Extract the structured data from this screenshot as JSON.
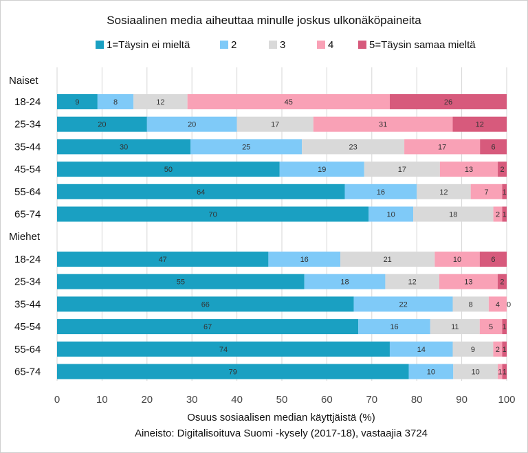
{
  "chart_data": {
    "type": "bar",
    "orientation": "horizontal",
    "stacked": true,
    "title": "Sosiaalinen media aiheuttaa minulle joskus ulkonäköpaineita",
    "xlabel": "Osuus sosiaalisen median käyttjäistä (%)",
    "source": "Aineisto: Digitalisoituva Suomi -kysely (2017-18), vastaajia 3724",
    "xlim": [
      0,
      100
    ],
    "xticks": [
      "0",
      "10",
      "20",
      "30",
      "40",
      "50",
      "60",
      "70",
      "80",
      "90",
      "100"
    ],
    "grid": true,
    "legend_position": "top",
    "groups": [
      {
        "label": "Naiset",
        "categories": [
          "18-24",
          "25-34",
          "35-44",
          "45-54",
          "55-64",
          "65-74"
        ],
        "rows": [
          [
            9,
            8,
            12,
            45,
            26
          ],
          [
            20,
            20,
            17,
            31,
            12
          ],
          [
            30,
            25,
            23,
            17,
            6
          ],
          [
            50,
            19,
            17,
            13,
            2
          ],
          [
            64,
            16,
            12,
            7,
            1
          ],
          [
            70,
            10,
            18,
            2,
            1
          ]
        ]
      },
      {
        "label": "Miehet",
        "categories": [
          "18-24",
          "25-34",
          "35-44",
          "45-54",
          "55-64",
          "65-74"
        ],
        "rows": [
          [
            47,
            16,
            21,
            10,
            6
          ],
          [
            55,
            18,
            12,
            13,
            2
          ],
          [
            66,
            22,
            8,
            4,
            0
          ],
          [
            67,
            16,
            11,
            5,
            1
          ],
          [
            74,
            14,
            9,
            2,
            1
          ],
          [
            79,
            10,
            10,
            1,
            1
          ]
        ]
      }
    ],
    "series": [
      {
        "name": "1=Täysin ei mieltä",
        "color": "#1aa0c2"
      },
      {
        "name": "2",
        "color": "#7fcaf8"
      },
      {
        "name": "3",
        "color": "#d9d9d9"
      },
      {
        "name": "4",
        "color": "#f9a1b6"
      },
      {
        "name": "5=Täysin samaa mieltä",
        "color": "#d75a7c"
      }
    ]
  }
}
